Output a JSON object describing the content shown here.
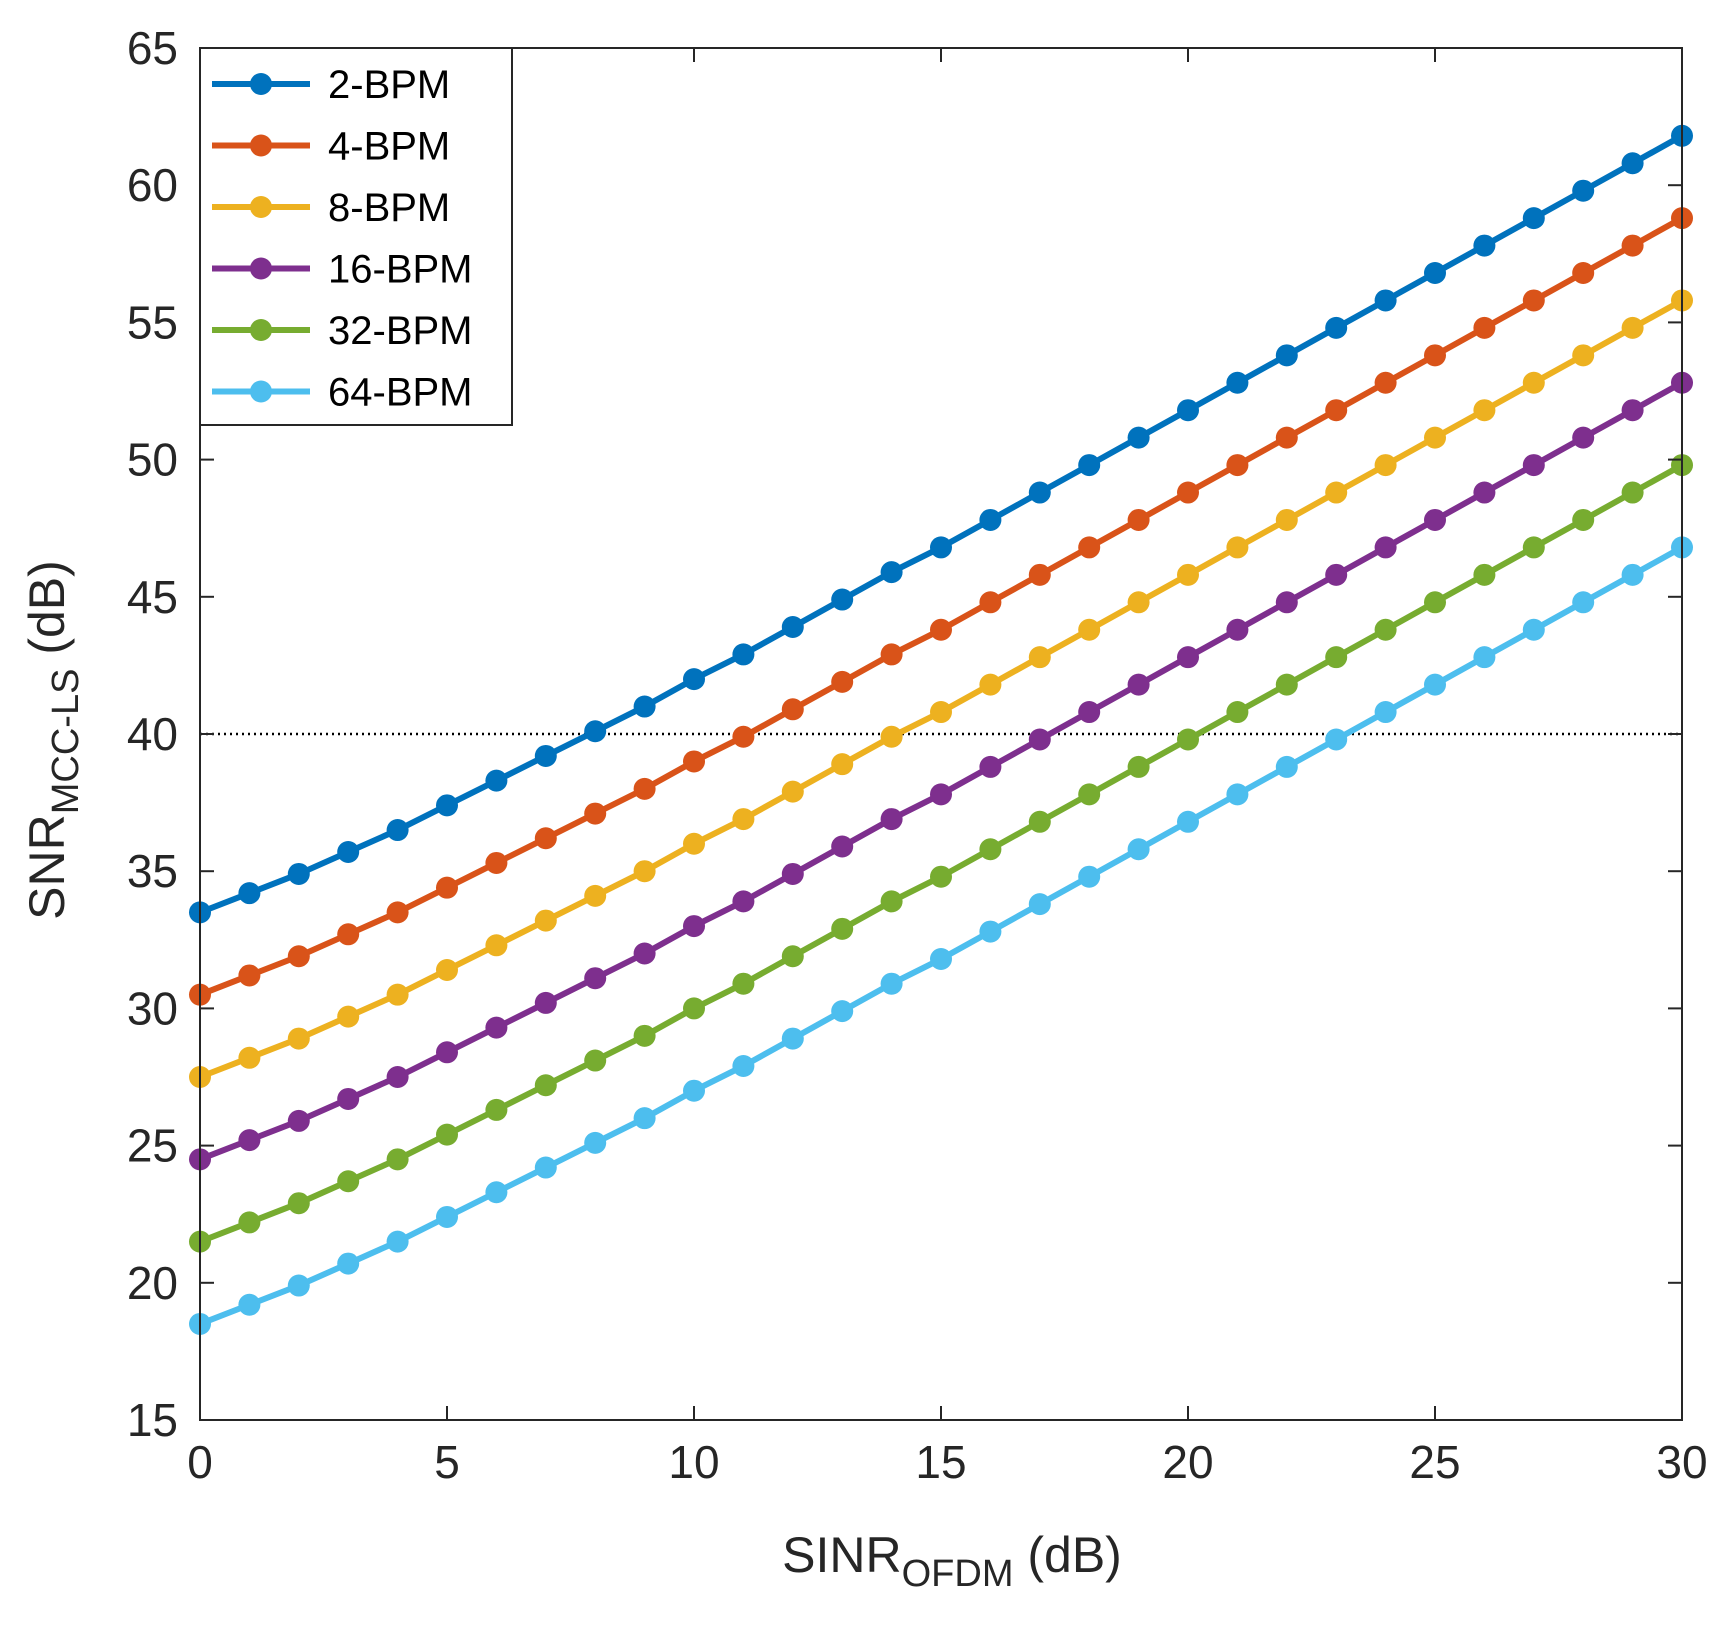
{
  "chart_data": {
    "type": "line",
    "xlabel": {
      "main": "SINR",
      "sub": "OFDM",
      "unit": " (dB)"
    },
    "ylabel": {
      "main": "SNR",
      "sub": "MCC-LS",
      "unit": " (dB)"
    },
    "xlim": [
      0,
      30
    ],
    "ylim": [
      15,
      65
    ],
    "xticks": [
      "0",
      "5",
      "10",
      "15",
      "20",
      "25",
      "30"
    ],
    "yticks": [
      "15",
      "20",
      "25",
      "30",
      "35",
      "40",
      "45",
      "50",
      "55",
      "60",
      "65"
    ],
    "grid": false,
    "legend_position": "top-left",
    "reference_line": {
      "y": 40,
      "style": "dotted",
      "color": "#000000"
    },
    "x": [
      0,
      1,
      2,
      3,
      4,
      5,
      6,
      7,
      8,
      9,
      10,
      11,
      12,
      13,
      14,
      15,
      16,
      17,
      18,
      19,
      20,
      21,
      22,
      23,
      24,
      25,
      26,
      27,
      28,
      29,
      30
    ],
    "series": [
      {
        "name": "2-BPM",
        "color": "#0072BD",
        "values": [
          33.5,
          34.2,
          34.9,
          35.7,
          36.5,
          37.4,
          38.3,
          39.2,
          40.1,
          41.0,
          42.0,
          42.9,
          43.9,
          44.9,
          45.9,
          46.8,
          47.8,
          48.8,
          49.8,
          50.8,
          51.8,
          52.8,
          53.8,
          54.8,
          55.8,
          56.8,
          57.8,
          58.8,
          59.8,
          60.8,
          61.8
        ]
      },
      {
        "name": "4-BPM",
        "color": "#D95319",
        "values": [
          30.5,
          31.2,
          31.9,
          32.7,
          33.5,
          34.4,
          35.3,
          36.2,
          37.1,
          38.0,
          39.0,
          39.9,
          40.9,
          41.9,
          42.9,
          43.8,
          44.8,
          45.8,
          46.8,
          47.8,
          48.8,
          49.8,
          50.8,
          51.8,
          52.8,
          53.8,
          54.8,
          55.8,
          56.8,
          57.8,
          58.8
        ]
      },
      {
        "name": "8-BPM",
        "color": "#EDB120",
        "values": [
          27.5,
          28.2,
          28.9,
          29.7,
          30.5,
          31.4,
          32.3,
          33.2,
          34.1,
          35.0,
          36.0,
          36.9,
          37.9,
          38.9,
          39.9,
          40.8,
          41.8,
          42.8,
          43.8,
          44.8,
          45.8,
          46.8,
          47.8,
          48.8,
          49.8,
          50.8,
          51.8,
          52.8,
          53.8,
          54.8,
          55.8
        ]
      },
      {
        "name": "16-BPM",
        "color": "#7E2F8E",
        "values": [
          24.5,
          25.2,
          25.9,
          26.7,
          27.5,
          28.4,
          29.3,
          30.2,
          31.1,
          32.0,
          33.0,
          33.9,
          34.9,
          35.9,
          36.9,
          37.8,
          38.8,
          39.8,
          40.8,
          41.8,
          42.8,
          43.8,
          44.8,
          45.8,
          46.8,
          47.8,
          48.8,
          49.8,
          50.8,
          51.8,
          52.8
        ]
      },
      {
        "name": "32-BPM",
        "color": "#77AC30",
        "values": [
          21.5,
          22.2,
          22.9,
          23.7,
          24.5,
          25.4,
          26.3,
          27.2,
          28.1,
          29.0,
          30.0,
          30.9,
          31.9,
          32.9,
          33.9,
          34.8,
          35.8,
          36.8,
          37.8,
          38.8,
          39.8,
          40.8,
          41.8,
          42.8,
          43.8,
          44.8,
          45.8,
          46.8,
          47.8,
          48.8,
          49.8
        ]
      },
      {
        "name": "64-BPM",
        "color": "#4DBEEE",
        "values": [
          18.5,
          19.2,
          19.9,
          20.7,
          21.5,
          22.4,
          23.3,
          24.2,
          25.1,
          26.0,
          27.0,
          27.9,
          28.9,
          29.9,
          30.9,
          31.8,
          32.8,
          33.8,
          34.8,
          35.8,
          36.8,
          37.8,
          38.8,
          39.8,
          40.8,
          41.8,
          42.8,
          43.8,
          44.8,
          45.8,
          46.8
        ]
      }
    ]
  }
}
